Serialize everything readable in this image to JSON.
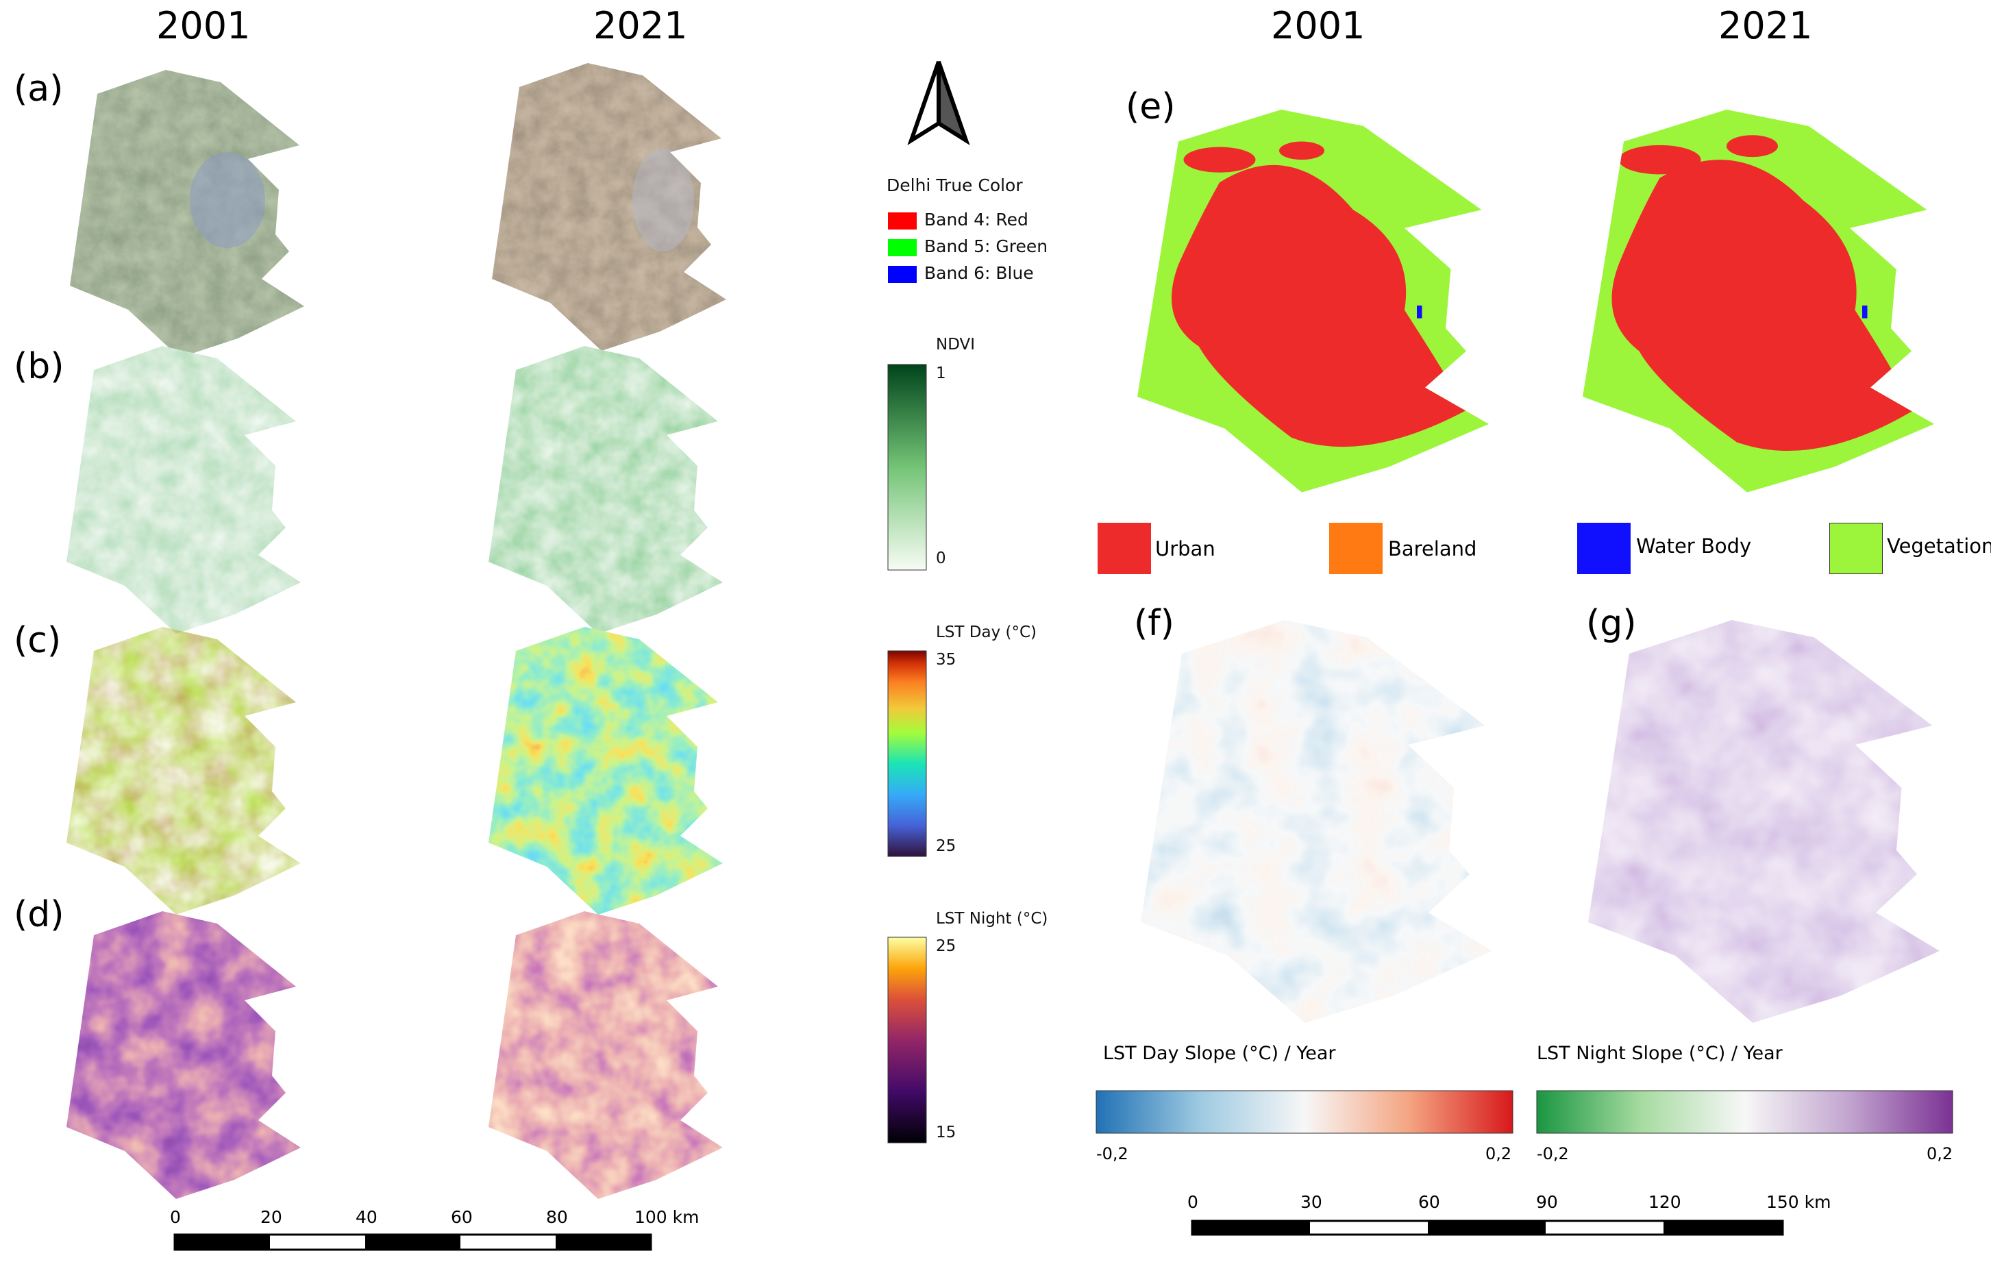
{
  "years": {
    "left_2001": "2001",
    "left_2021": "2021",
    "right_2001": "2001",
    "right_2021": "2021"
  },
  "panel_labels": {
    "a": "(a)",
    "b": "(b)",
    "c": "(c)",
    "d": "(d)",
    "e": "(e)",
    "f": "(f)",
    "g": "(g)"
  },
  "true_color_legend": {
    "title": "Delhi True Color",
    "items": [
      {
        "label": "Band 4: Red",
        "color": "#ff0000"
      },
      {
        "label": "Band 5: Green",
        "color": "#00ff00"
      },
      {
        "label": "Band 6: Blue",
        "color": "#0000ff"
      }
    ]
  },
  "ndvi_legend": {
    "title": "NDVI",
    "max": "1",
    "min": "0"
  },
  "lst_day_legend": {
    "title": "LST Day (°C)",
    "max": "35",
    "min": "25"
  },
  "lst_night_legend": {
    "title": "LST Night (°C)",
    "max": "25",
    "min": "15"
  },
  "landcover_legend": {
    "items": [
      {
        "label": "Urban",
        "color": "#ee2b2b"
      },
      {
        "label": "Bareland",
        "color": "#ff7a12"
      },
      {
        "label": "Water Body",
        "color": "#1010ff"
      },
      {
        "label": "Vegetation",
        "color": "#9cf53a"
      }
    ]
  },
  "slope_day_legend": {
    "title": "LST Day Slope (°C) / Year",
    "min": "-0,2",
    "max": "0,2"
  },
  "slope_night_legend": {
    "title": "LST Night Slope (°C) / Year",
    "min": "-0,2",
    "max": "0,2"
  },
  "scalebar_left": {
    "ticks": [
      "0",
      "20",
      "40",
      "60",
      "80",
      "100 km"
    ]
  },
  "scalebar_right": {
    "ticks": [
      "0",
      "30",
      "60",
      "90",
      "120",
      "150 km"
    ]
  },
  "icons": {
    "north_arrow": "north-arrow-icon"
  }
}
